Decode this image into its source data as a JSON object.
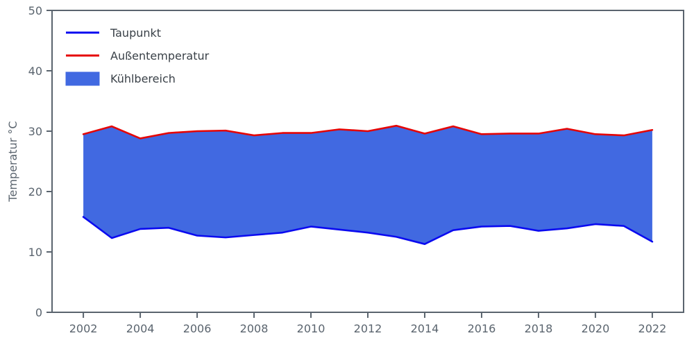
{
  "chart_data": {
    "type": "area",
    "title": "",
    "xlabel": "",
    "ylabel": "Temperatur °C",
    "ylim": [
      0,
      50
    ],
    "xlim": [
      2000.9,
      2023.1
    ],
    "yticks": [
      0,
      10,
      20,
      30,
      40,
      50
    ],
    "xticks": [
      2002,
      2004,
      2006,
      2008,
      2010,
      2012,
      2014,
      2016,
      2018,
      2020,
      2022
    ],
    "x": [
      2002,
      2003,
      2004,
      2005,
      2006,
      2007,
      2008,
      2009,
      2010,
      2011,
      2012,
      2013,
      2014,
      2015,
      2016,
      2017,
      2018,
      2019,
      2020,
      2021,
      2022
    ],
    "series": [
      {
        "name": "Taupunkt",
        "color": "#0a0af0",
        "values": [
          15.8,
          12.3,
          13.8,
          14.0,
          12.7,
          12.4,
          12.8,
          13.2,
          14.2,
          13.7,
          13.2,
          12.5,
          11.3,
          13.6,
          14.2,
          14.3,
          13.5,
          13.9,
          14.6,
          14.3,
          11.7
        ]
      },
      {
        "name": "Außentemperatur",
        "color": "#e50505",
        "values": [
          29.5,
          30.8,
          28.8,
          29.7,
          30.0,
          30.1,
          29.3,
          29.7,
          29.7,
          30.3,
          30.0,
          30.9,
          29.6,
          30.8,
          29.5,
          29.6,
          29.6,
          30.4,
          29.5,
          29.3,
          30.2
        ]
      }
    ],
    "fill_between": {
      "name": "Kühlbereich",
      "color": "#4169e1",
      "lower": "Taupunkt",
      "upper": "Außentemperatur"
    },
    "legend": {
      "position": "upper-left",
      "frame": false,
      "entries": [
        {
          "label": "Taupunkt",
          "kind": "line",
          "color": "#0a0af0"
        },
        {
          "label": "Außentemperatur",
          "kind": "line",
          "color": "#e50505"
        },
        {
          "label": "Kühlbereich",
          "kind": "patch",
          "color": "#4169e1"
        }
      ]
    },
    "grid": false,
    "axis_color": "#5a646e",
    "tick_fontsize": 16,
    "label_fontsize": 16
  }
}
